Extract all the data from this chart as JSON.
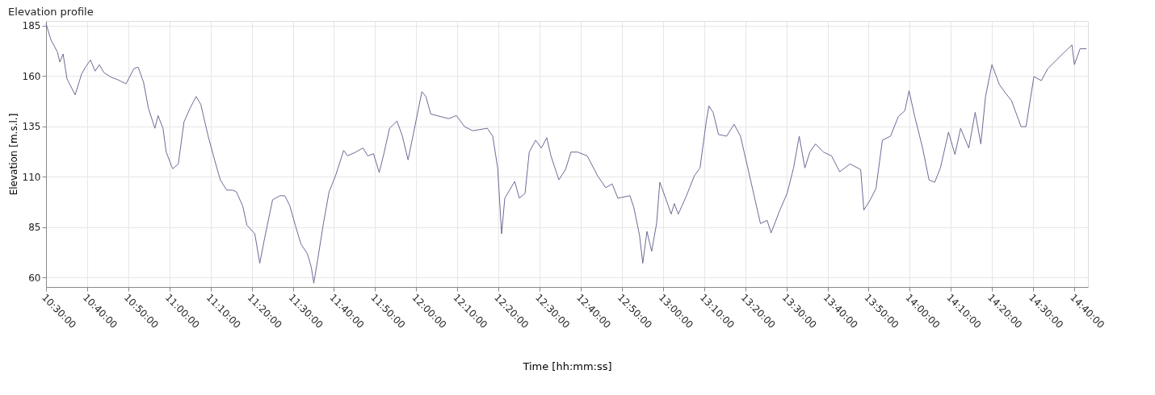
{
  "chart_data": {
    "type": "line",
    "title": "Elevation profile",
    "xlabel": "Time  [hh:mm:ss]",
    "ylabel": "Elevation [m.s.l.]",
    "x": [
      10.5,
      10.52,
      10.546,
      10.556,
      10.569,
      10.585,
      10.618,
      10.644,
      10.66,
      10.68,
      10.699,
      10.716,
      10.735,
      10.765,
      10.791,
      10.824,
      10.856,
      10.873,
      10.895,
      10.915,
      10.941,
      10.954,
      10.974,
      10.987,
      11.013,
      11.036,
      11.059,
      11.085,
      11.108,
      11.127,
      11.157,
      11.183,
      11.206,
      11.232,
      11.255,
      11.271,
      11.297,
      11.314,
      11.346,
      11.366,
      11.386,
      11.418,
      11.448,
      11.467,
      11.487,
      11.51,
      11.533,
      11.559,
      11.575,
      11.585,
      11.601,
      11.624,
      11.647,
      11.673,
      11.706,
      11.722,
      11.755,
      11.784,
      11.804,
      11.827,
      11.85,
      11.869,
      11.892,
      11.922,
      11.944,
      11.967,
      11.993,
      12.023,
      12.039,
      12.059,
      12.131,
      12.163,
      12.196,
      12.229,
      12.288,
      12.31,
      12.33,
      12.346,
      12.359,
      12.399,
      12.418,
      12.441,
      12.458,
      12.484,
      12.507,
      12.529,
      12.546,
      12.578,
      12.605,
      12.627,
      12.654,
      12.693,
      12.735,
      12.768,
      12.794,
      12.817,
      12.866,
      12.882,
      12.905,
      12.918,
      12.935,
      12.954,
      12.974,
      12.987,
      13.013,
      13.033,
      13.046,
      13.062,
      13.095,
      13.127,
      13.15,
      13.176,
      13.186,
      13.203,
      13.225,
      13.258,
      13.288,
      13.314,
      13.34,
      13.373,
      13.395,
      13.422,
      13.438,
      13.471,
      13.503,
      13.529,
      13.552,
      13.575,
      13.595,
      13.618,
      13.65,
      13.683,
      13.716,
      13.758,
      13.801,
      13.814,
      13.84,
      13.863,
      13.889,
      13.922,
      13.954,
      13.98,
      13.997,
      14.02,
      14.052,
      14.078,
      14.101,
      14.124,
      14.157,
      14.183,
      14.206,
      14.239,
      14.265,
      14.288,
      14.307,
      14.333,
      14.363,
      14.386,
      14.412,
      14.451,
      14.471,
      14.503,
      14.533,
      14.559,
      14.592,
      14.624,
      14.657,
      14.667,
      14.69,
      14.716
    ],
    "series": [
      {
        "color": "#6b6b96",
        "values": [
          186,
          178,
          172,
          167,
          171,
          158.6,
          150.7,
          161,
          164.5,
          168,
          162.5,
          165.7,
          161.7,
          159.4,
          158.2,
          156.2,
          163.7,
          164.5,
          157,
          144,
          134.1,
          140.4,
          134,
          122.3,
          114,
          116.4,
          137.3,
          144.4,
          149.9,
          146,
          130.2,
          118.4,
          108.5,
          103.4,
          103.4,
          102.6,
          95.5,
          86,
          81.7,
          67.1,
          79.7,
          98.6,
          100.6,
          100.6,
          95.9,
          86,
          76.6,
          71.8,
          65,
          57.2,
          69.1,
          86.8,
          102.6,
          110.5,
          123.1,
          120.4,
          122.3,
          124.3,
          120.4,
          121.5,
          112.1,
          121.5,
          134.1,
          137.7,
          130.2,
          118.4,
          134.1,
          152.3,
          149.9,
          141.2,
          138.9,
          140.4,
          134.9,
          132.9,
          134.1,
          130.2,
          114.4,
          81.7,
          99.4,
          107.7,
          99.4,
          101.8,
          122.3,
          128.2,
          124.3,
          129.4,
          120.4,
          108.5,
          113.6,
          122.3,
          122.3,
          120.4,
          110.5,
          104.6,
          106.5,
          99.4,
          100.6,
          94.7,
          80.9,
          67.1,
          82.9,
          73,
          86.8,
          107.3,
          98.6,
          91.5,
          96.7,
          91.5,
          100.6,
          110.5,
          114.4,
          138.1,
          145.2,
          142,
          131,
          130.2,
          136.1,
          130.2,
          116.4,
          98.6,
          86.8,
          88.4,
          82.1,
          92.7,
          101.8,
          114.4,
          130.2,
          114.4,
          122.3,
          126.3,
          122.3,
          120.4,
          112.5,
          116.4,
          113.6,
          93.5,
          98.6,
          104.2,
          128.2,
          130.2,
          140,
          142.8,
          152.7,
          140,
          124.3,
          108.5,
          107.3,
          114.4,
          132.2,
          121.1,
          134.1,
          124.3,
          142,
          126.3,
          149.9,
          165.7,
          155.8,
          151.9,
          147.9,
          134.9,
          134.9,
          159.8,
          157.8,
          163.7,
          167.7,
          171.6,
          175.5,
          165.7,
          173.6,
          173.6
        ]
      }
    ],
    "xlim": [
      10.5,
      14.722
    ],
    "ylim": [
      55.3,
      187.4
    ],
    "xticks": [
      {
        "value": 10.5,
        "label": "10:30:00"
      },
      {
        "value": 10.6667,
        "label": "10:40:00"
      },
      {
        "value": 10.8333,
        "label": "10:50:00"
      },
      {
        "value": 11,
        "label": "11:00:00"
      },
      {
        "value": 11.1667,
        "label": "11:10:00"
      },
      {
        "value": 11.3333,
        "label": "11:20:00"
      },
      {
        "value": 11.5,
        "label": "11:30:00"
      },
      {
        "value": 11.6667,
        "label": "11:40:00"
      },
      {
        "value": 11.8333,
        "label": "11:50:00"
      },
      {
        "value": 12,
        "label": "12:00:00"
      },
      {
        "value": 12.1667,
        "label": "12:10:00"
      },
      {
        "value": 12.3333,
        "label": "12:20:00"
      },
      {
        "value": 12.5,
        "label": "12:30:00"
      },
      {
        "value": 12.6667,
        "label": "12:40:00"
      },
      {
        "value": 12.8333,
        "label": "12:50:00"
      },
      {
        "value": 13,
        "label": "13:00:00"
      },
      {
        "value": 13.1667,
        "label": "13:10:00"
      },
      {
        "value": 13.3333,
        "label": "13:20:00"
      },
      {
        "value": 13.5,
        "label": "13:30:00"
      },
      {
        "value": 13.6667,
        "label": "13:40:00"
      },
      {
        "value": 13.8333,
        "label": "13:50:00"
      },
      {
        "value": 14,
        "label": "14:00:00"
      },
      {
        "value": 14.1667,
        "label": "14:10:00"
      },
      {
        "value": 14.3333,
        "label": "14:20:00"
      },
      {
        "value": 14.5,
        "label": "14:30:00"
      },
      {
        "value": 14.6667,
        "label": "14:40:00"
      }
    ],
    "yticks": [
      60,
      85,
      110,
      135,
      160,
      185
    ],
    "grid": true
  }
}
